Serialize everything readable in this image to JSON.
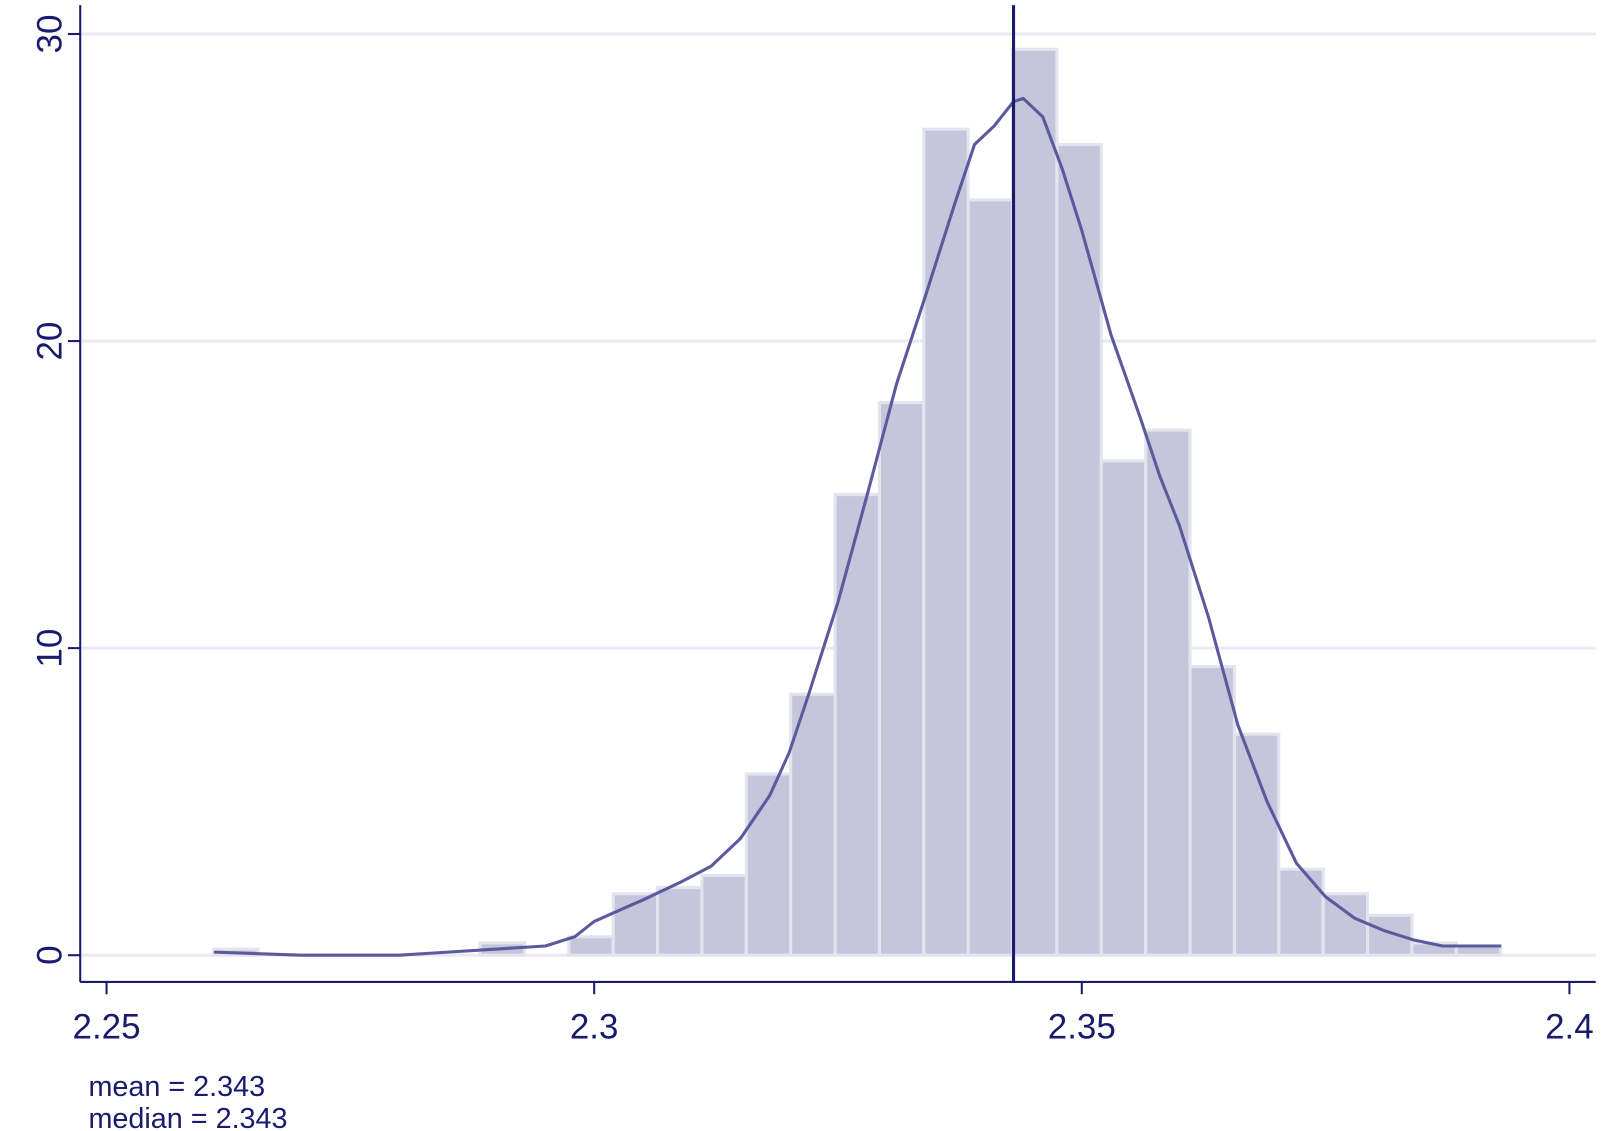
{
  "chart_data": {
    "type": "histogram",
    "bins": [
      2.261,
      2.26555,
      2.2701,
      2.27465,
      2.2792,
      2.28375,
      2.2883,
      2.29285,
      2.2974,
      2.30195,
      2.3065,
      2.31105,
      2.3156,
      2.32015,
      2.3247,
      2.32925,
      2.3338,
      2.33835,
      2.3429,
      2.34745,
      2.352,
      2.35655,
      2.3611,
      2.36565,
      2.3702,
      2.37475,
      2.3793,
      2.38385,
      2.3884,
      2.39295
    ],
    "values": [
      0.2,
      0,
      0,
      0,
      0,
      0,
      0.4,
      0,
      0.6,
      2.0,
      2.2,
      2.6,
      5.9,
      8.5,
      15.0,
      18.0,
      26.9,
      24.6,
      29.5,
      26.4,
      16.1,
      17.1,
      9.4,
      7.2,
      2.8,
      2.0,
      1.3,
      0.4,
      0.3
    ],
    "color": "#c5c5dc",
    "density": {
      "color": "#5a5a9c",
      "x": [
        2.261,
        2.27,
        2.28,
        2.285,
        2.29,
        2.295,
        2.298,
        2.3,
        2.305,
        2.309,
        2.312,
        2.315,
        2.318,
        2.32,
        2.322,
        2.325,
        2.328,
        2.331,
        2.334,
        2.337,
        2.339,
        2.341,
        2.343,
        2.344,
        2.346,
        2.348,
        2.35,
        2.353,
        2.356,
        2.358,
        2.36,
        2.363,
        2.366,
        2.369,
        2.372,
        2.375,
        2.378,
        2.381,
        2.384,
        2.387,
        2.393
      ],
      "values": [
        0.1,
        0,
        0,
        0.1,
        0.2,
        0.3,
        0.6,
        1.1,
        1.8,
        2.4,
        2.9,
        3.8,
        5.2,
        6.6,
        8.5,
        11.5,
        15.0,
        18.6,
        21.5,
        24.5,
        26.4,
        27.0,
        27.8,
        27.9,
        27.3,
        25.6,
        23.6,
        20.2,
        17.5,
        15.6,
        14.0,
        11.0,
        7.5,
        5.0,
        3.0,
        1.9,
        1.2,
        0.8,
        0.5,
        0.3,
        0.3
      ]
    },
    "vline": 2.343,
    "vline_color": "#1a1a6e",
    "annotations": [
      "mean = 2.343",
      "median = 2.343"
    ],
    "xlim": [
      2.2473,
      2.4027
    ],
    "ylim": [
      -0.87,
      30.94
    ],
    "xticks": [
      2.25,
      2.3,
      2.35,
      2.4
    ],
    "yticks": [
      0,
      10,
      20,
      30
    ],
    "grid": true
  }
}
